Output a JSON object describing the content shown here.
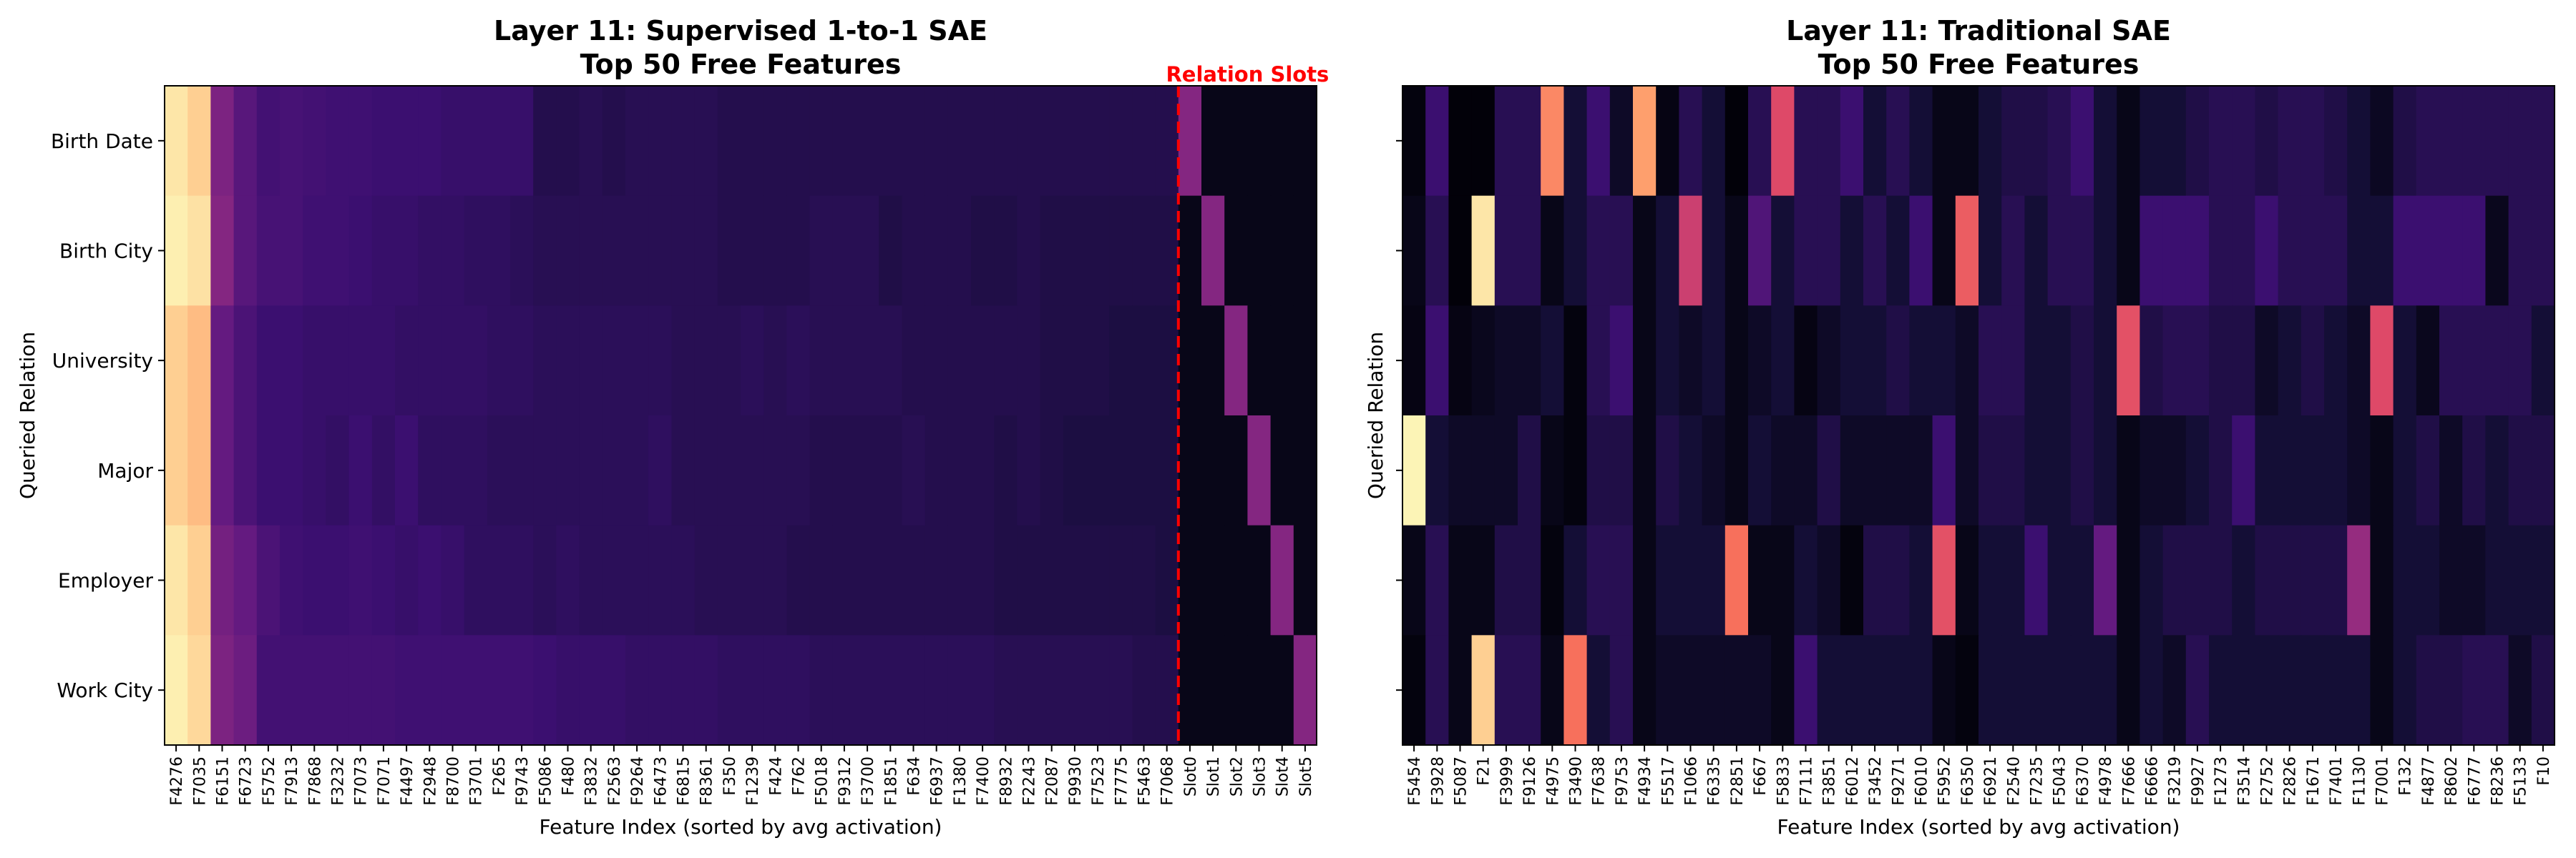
{
  "chart_data": [
    {
      "type": "heatmap",
      "title_line1": "Layer 11: Supervised 1-to-1 SAE",
      "title_line2": "Top 50 Free Features",
      "xlabel": "Feature Index (sorted by avg activation)",
      "ylabel": "Queried Relation",
      "annotation": "Relation Slots",
      "annotation_color": "#ff0000",
      "separator_after_column": 43,
      "colormap": "magma",
      "value_range": [
        0,
        1
      ],
      "rows": [
        "Birth Date",
        "Birth City",
        "University",
        "Major",
        "Employer",
        "Work City"
      ],
      "columns": [
        "F4276",
        "F7035",
        "F6151",
        "F6723",
        "F5752",
        "F7913",
        "F7868",
        "F3232",
        "F7073",
        "F7071",
        "F4497",
        "F2948",
        "F8700",
        "F3701",
        "F265",
        "F9743",
        "F5086",
        "F480",
        "F3832",
        "F2563",
        "F9264",
        "F6473",
        "F6815",
        "F8361",
        "F350",
        "F1239",
        "F424",
        "F762",
        "F5018",
        "F9312",
        "F3700",
        "F1851",
        "F634",
        "F6937",
        "F1380",
        "F7400",
        "F8932",
        "F2243",
        "F2087",
        "F9930",
        "F7523",
        "F7775",
        "F5463",
        "F7068",
        "Slot0",
        "Slot1",
        "Slot2",
        "Slot3",
        "Slot4",
        "Slot5"
      ],
      "values": [
        [
          0.95,
          0.9,
          0.36,
          0.27,
          0.22,
          0.23,
          0.22,
          0.21,
          0.21,
          0.2,
          0.2,
          0.2,
          0.19,
          0.19,
          0.19,
          0.19,
          0.14,
          0.14,
          0.15,
          0.14,
          0.15,
          0.15,
          0.15,
          0.15,
          0.14,
          0.14,
          0.14,
          0.14,
          0.14,
          0.14,
          0.14,
          0.14,
          0.14,
          0.14,
          0.14,
          0.14,
          0.14,
          0.14,
          0.14,
          0.14,
          0.14,
          0.14,
          0.14,
          0.14,
          0.38,
          0.04,
          0.04,
          0.04,
          0.04,
          0.04
        ],
        [
          0.97,
          0.94,
          0.38,
          0.27,
          0.23,
          0.23,
          0.21,
          0.21,
          0.2,
          0.19,
          0.19,
          0.18,
          0.18,
          0.17,
          0.17,
          0.16,
          0.15,
          0.15,
          0.15,
          0.15,
          0.15,
          0.15,
          0.15,
          0.15,
          0.14,
          0.14,
          0.14,
          0.14,
          0.15,
          0.15,
          0.15,
          0.13,
          0.14,
          0.14,
          0.14,
          0.13,
          0.13,
          0.14,
          0.13,
          0.13,
          0.13,
          0.13,
          0.13,
          0.13,
          0.04,
          0.38,
          0.04,
          0.04,
          0.04,
          0.04
        ],
        [
          0.9,
          0.86,
          0.3,
          0.24,
          0.2,
          0.2,
          0.19,
          0.19,
          0.19,
          0.19,
          0.18,
          0.18,
          0.18,
          0.18,
          0.17,
          0.17,
          0.16,
          0.16,
          0.16,
          0.16,
          0.16,
          0.16,
          0.15,
          0.15,
          0.15,
          0.16,
          0.15,
          0.16,
          0.15,
          0.15,
          0.15,
          0.15,
          0.14,
          0.14,
          0.14,
          0.14,
          0.14,
          0.14,
          0.13,
          0.13,
          0.13,
          0.12,
          0.12,
          0.12,
          0.04,
          0.04,
          0.38,
          0.04,
          0.04,
          0.04
        ],
        [
          0.9,
          0.86,
          0.3,
          0.24,
          0.2,
          0.2,
          0.19,
          0.18,
          0.2,
          0.18,
          0.2,
          0.17,
          0.17,
          0.17,
          0.16,
          0.16,
          0.16,
          0.16,
          0.16,
          0.16,
          0.16,
          0.17,
          0.15,
          0.15,
          0.15,
          0.15,
          0.15,
          0.15,
          0.14,
          0.14,
          0.14,
          0.14,
          0.15,
          0.14,
          0.14,
          0.14,
          0.13,
          0.14,
          0.13,
          0.12,
          0.12,
          0.12,
          0.12,
          0.12,
          0.04,
          0.04,
          0.04,
          0.38,
          0.04,
          0.04
        ],
        [
          0.95,
          0.9,
          0.34,
          0.3,
          0.24,
          0.21,
          0.2,
          0.2,
          0.21,
          0.2,
          0.19,
          0.2,
          0.19,
          0.17,
          0.17,
          0.17,
          0.16,
          0.17,
          0.16,
          0.16,
          0.16,
          0.16,
          0.16,
          0.15,
          0.15,
          0.15,
          0.15,
          0.14,
          0.14,
          0.14,
          0.14,
          0.14,
          0.14,
          0.14,
          0.14,
          0.14,
          0.13,
          0.13,
          0.13,
          0.13,
          0.13,
          0.13,
          0.13,
          0.12,
          0.04,
          0.04,
          0.04,
          0.04,
          0.38,
          0.04
        ],
        [
          0.97,
          0.92,
          0.36,
          0.32,
          0.22,
          0.22,
          0.22,
          0.22,
          0.22,
          0.22,
          0.21,
          0.21,
          0.21,
          0.21,
          0.21,
          0.21,
          0.2,
          0.19,
          0.19,
          0.19,
          0.18,
          0.18,
          0.18,
          0.18,
          0.17,
          0.17,
          0.17,
          0.17,
          0.16,
          0.16,
          0.16,
          0.16,
          0.16,
          0.16,
          0.16,
          0.16,
          0.15,
          0.15,
          0.15,
          0.15,
          0.15,
          0.15,
          0.14,
          0.14,
          0.04,
          0.04,
          0.04,
          0.04,
          0.04,
          0.38
        ]
      ]
    },
    {
      "type": "heatmap",
      "title_line1": "Layer 11: Traditional SAE",
      "title_line2": "Top 50 Free Features",
      "xlabel": "Feature Index (sorted by avg activation)",
      "ylabel": "Queried Relation",
      "colormap": "magma",
      "value_range": [
        0,
        1
      ],
      "rows": [
        "Birth Date",
        "Birth City",
        "University",
        "Major",
        "Employer",
        "Work City"
      ],
      "columns": [
        "F5454",
        "F3928",
        "F5087",
        "F21",
        "F3999",
        "F9126",
        "F4975",
        "F3490",
        "F7638",
        "F9753",
        "F4934",
        "F5517",
        "F1066",
        "F6335",
        "F2851",
        "F667",
        "F5833",
        "F7111",
        "F3851",
        "F6012",
        "F3452",
        "F9271",
        "F6010",
        "F5952",
        "F6350",
        "F6921",
        "F2540",
        "F7235",
        "F5043",
        "F6370",
        "F4978",
        "F7666",
        "F6666",
        "F3219",
        "F9927",
        "F1273",
        "F3514",
        "F2752",
        "F2826",
        "F1671",
        "F7401",
        "F1130",
        "F7001",
        "F132",
        "F4877",
        "F8602",
        "F6777",
        "F8236",
        "F5133",
        "F10"
      ],
      "values": [
        [
          0.02,
          0.2,
          0.01,
          0.01,
          0.15,
          0.15,
          0.75,
          0.1,
          0.2,
          0.07,
          0.8,
          0.03,
          0.15,
          0.1,
          0.01,
          0.15,
          0.6,
          0.15,
          0.15,
          0.2,
          0.1,
          0.15,
          0.1,
          0.04,
          0.04,
          0.1,
          0.13,
          0.13,
          0.15,
          0.2,
          0.1,
          0.04,
          0.1,
          0.1,
          0.13,
          0.15,
          0.15,
          0.13,
          0.15,
          0.15,
          0.13,
          0.1,
          0.06,
          0.13,
          0.15,
          0.15,
          0.15,
          0.15,
          0.15,
          0.15
        ],
        [
          0.04,
          0.15,
          0.01,
          0.95,
          0.15,
          0.15,
          0.04,
          0.1,
          0.15,
          0.15,
          0.04,
          0.1,
          0.55,
          0.1,
          0.04,
          0.25,
          0.1,
          0.15,
          0.15,
          0.1,
          0.15,
          0.1,
          0.2,
          0.04,
          0.65,
          0.1,
          0.15,
          0.1,
          0.15,
          0.15,
          0.1,
          0.04,
          0.2,
          0.2,
          0.2,
          0.15,
          0.15,
          0.2,
          0.15,
          0.15,
          0.15,
          0.1,
          0.1,
          0.2,
          0.2,
          0.2,
          0.2,
          0.05,
          0.15,
          0.15
        ],
        [
          0.03,
          0.2,
          0.03,
          0.05,
          0.07,
          0.07,
          0.1,
          0.02,
          0.15,
          0.2,
          0.04,
          0.1,
          0.07,
          0.1,
          0.04,
          0.07,
          0.1,
          0.03,
          0.07,
          0.1,
          0.1,
          0.13,
          0.1,
          0.1,
          0.07,
          0.15,
          0.15,
          0.1,
          0.1,
          0.13,
          0.1,
          0.62,
          0.13,
          0.15,
          0.15,
          0.13,
          0.13,
          0.07,
          0.1,
          0.13,
          0.1,
          0.07,
          0.6,
          0.1,
          0.05,
          0.15,
          0.15,
          0.15,
          0.15,
          0.1
        ],
        [
          0.98,
          0.1,
          0.07,
          0.07,
          0.07,
          0.13,
          0.04,
          0.02,
          0.13,
          0.13,
          0.04,
          0.13,
          0.1,
          0.07,
          0.04,
          0.1,
          0.07,
          0.07,
          0.13,
          0.07,
          0.07,
          0.07,
          0.07,
          0.2,
          0.07,
          0.13,
          0.13,
          0.1,
          0.1,
          0.13,
          0.1,
          0.04,
          0.07,
          0.07,
          0.1,
          0.13,
          0.2,
          0.1,
          0.1,
          0.1,
          0.1,
          0.07,
          0.04,
          0.1,
          0.13,
          0.07,
          0.13,
          0.1,
          0.13,
          0.13
        ],
        [
          0.04,
          0.15,
          0.04,
          0.04,
          0.13,
          0.13,
          0.02,
          0.1,
          0.15,
          0.15,
          0.04,
          0.1,
          0.1,
          0.1,
          0.7,
          0.04,
          0.04,
          0.1,
          0.07,
          0.02,
          0.13,
          0.13,
          0.1,
          0.62,
          0.04,
          0.1,
          0.1,
          0.2,
          0.1,
          0.1,
          0.3,
          0.04,
          0.1,
          0.13,
          0.13,
          0.13,
          0.1,
          0.13,
          0.13,
          0.13,
          0.13,
          0.42,
          0.04,
          0.1,
          0.1,
          0.07,
          0.07,
          0.1,
          0.1,
          0.1
        ],
        [
          0.02,
          0.15,
          0.04,
          0.9,
          0.15,
          0.15,
          0.04,
          0.7,
          0.1,
          0.15,
          0.04,
          0.07,
          0.07,
          0.07,
          0.07,
          0.07,
          0.04,
          0.2,
          0.1,
          0.1,
          0.1,
          0.1,
          0.1,
          0.04,
          0.02,
          0.1,
          0.1,
          0.1,
          0.1,
          0.1,
          0.1,
          0.04,
          0.1,
          0.07,
          0.15,
          0.1,
          0.1,
          0.1,
          0.1,
          0.1,
          0.1,
          0.1,
          0.04,
          0.1,
          0.13,
          0.13,
          0.15,
          0.15,
          0.07,
          0.13
        ]
      ]
    }
  ]
}
